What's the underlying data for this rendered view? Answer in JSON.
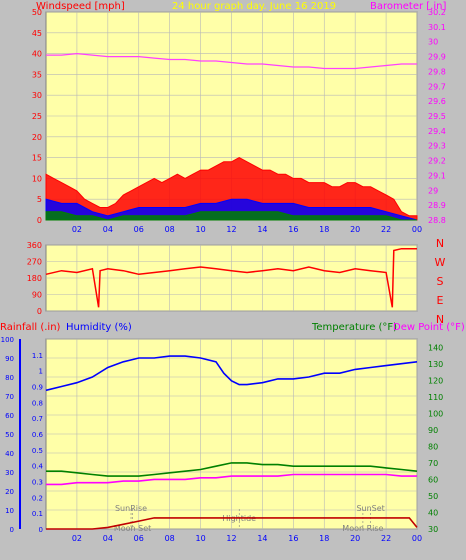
{
  "chart_data": [
    {
      "type": "line",
      "title": "24 hour graph day.  June 16 2019",
      "left_axis_label": "Windspeed [mph]",
      "right_axis_label": "Barometer [.in]",
      "x_ticks": [
        "02",
        "04",
        "06",
        "08",
        "10",
        "12",
        "14",
        "16",
        "18",
        "20",
        "22",
        "00"
      ],
      "xlim": [
        0,
        24
      ],
      "left_ylim": [
        0,
        50
      ],
      "left_ticks": [
        0,
        5,
        10,
        15,
        20,
        25,
        30,
        35,
        40,
        45,
        50
      ],
      "right_ylim": [
        28.8,
        30.2
      ],
      "right_ticks": [
        "28.8",
        "28.9",
        "29",
        "29.1",
        "29.2",
        "29.3",
        "29.4",
        "29.5",
        "29.6",
        "29.7",
        "29.8",
        "29.9",
        "30",
        "30.1",
        "30.2"
      ],
      "grid": true,
      "background": "#ffffa8",
      "series": [
        {
          "key": "barometer",
          "axis": "right",
          "color": "#ff40ff",
          "x": [
            0,
            1,
            2,
            3,
            4,
            5,
            6,
            7,
            8,
            9,
            10,
            11,
            12,
            13,
            14,
            15,
            16,
            17,
            18,
            19,
            20,
            21,
            22,
            23,
            24
          ],
          "values": [
            29.91,
            29.91,
            29.92,
            29.91,
            29.9,
            29.9,
            29.9,
            29.89,
            29.88,
            29.88,
            29.87,
            29.87,
            29.86,
            29.85,
            29.85,
            29.84,
            29.83,
            29.83,
            29.82,
            29.82,
            29.82,
            29.83,
            29.84,
            29.85,
            29.85
          ]
        },
        {
          "key": "gust",
          "axis": "left",
          "color": "#ff0000",
          "x": [
            0,
            0.5,
            1,
            1.5,
            2,
            2.5,
            3,
            3.5,
            4,
            4.5,
            5,
            5.5,
            6,
            6.5,
            7,
            7.5,
            8,
            8.5,
            9,
            9.5,
            10,
            10.5,
            11,
            11.5,
            12,
            12.5,
            13,
            13.5,
            14,
            14.5,
            15,
            15.5,
            16,
            16.5,
            17,
            17.5,
            18,
            18.5,
            19,
            19.5,
            20,
            20.5,
            21,
            21.5,
            22,
            22.5,
            23,
            23.5,
            24
          ],
          "values": [
            11,
            10,
            9,
            8,
            7,
            5,
            4,
            3,
            3,
            4,
            6,
            7,
            8,
            9,
            10,
            9,
            10,
            11,
            10,
            11,
            12,
            12,
            13,
            14,
            14,
            15,
            14,
            13,
            12,
            12,
            11,
            11,
            10,
            10,
            9,
            9,
            9,
            8,
            8,
            9,
            9,
            8,
            8,
            7,
            6,
            5,
            2,
            1,
            1
          ]
        },
        {
          "key": "wind_avg",
          "axis": "left",
          "color": "#0000ff",
          "x": [
            0,
            1,
            2,
            3,
            4,
            5,
            6,
            7,
            8,
            9,
            10,
            11,
            12,
            13,
            14,
            15,
            16,
            17,
            18,
            19,
            20,
            21,
            22,
            23,
            24
          ],
          "values": [
            5,
            4,
            4,
            2,
            1,
            2,
            3,
            3,
            3,
            3,
            4,
            4,
            5,
            5,
            4,
            4,
            4,
            3,
            3,
            3,
            3,
            3,
            2,
            1,
            0
          ]
        },
        {
          "key": "wind_min",
          "axis": "left",
          "color": "#008000",
          "x": [
            0,
            1,
            2,
            3,
            4,
            5,
            6,
            7,
            8,
            9,
            10,
            11,
            12,
            13,
            14,
            15,
            16,
            17,
            18,
            19,
            20,
            21,
            22,
            23,
            24
          ],
          "values": [
            2,
            2,
            1,
            1,
            0,
            1,
            1,
            1,
            1,
            1,
            2,
            2,
            2,
            2,
            2,
            2,
            1,
            1,
            1,
            1,
            1,
            1,
            1,
            0,
            0
          ]
        }
      ]
    },
    {
      "type": "line",
      "y_ticks": [
        "360",
        "270",
        "180",
        "90",
        "0"
      ],
      "ylim": [
        0,
        360
      ],
      "compass_labels": [
        "N",
        "W",
        "S",
        "E",
        "N"
      ],
      "x_ticks": [
        "02",
        "04",
        "06",
        "08",
        "10",
        "12",
        "14",
        "16",
        "18",
        "20",
        "22",
        "00"
      ],
      "xlim": [
        0,
        24
      ],
      "grid": true,
      "background": "#ffffa8",
      "series": [
        {
          "key": "wind_dir",
          "color": "#ff0000",
          "x": [
            0,
            1,
            2,
            3,
            3.4,
            3.5,
            4,
            5,
            6,
            7,
            8,
            9,
            10,
            11,
            12,
            13,
            14,
            15,
            16,
            17,
            18,
            19,
            20,
            21,
            22,
            22.4,
            22.5,
            23,
            24
          ],
          "values": [
            200,
            220,
            210,
            230,
            20,
            220,
            230,
            220,
            200,
            210,
            220,
            230,
            240,
            230,
            220,
            210,
            220,
            230,
            220,
            240,
            220,
            210,
            230,
            220,
            210,
            20,
            330,
            340,
            340
          ]
        }
      ]
    },
    {
      "type": "line",
      "left_axis_label_1": "Rainfall (.in)",
      "left_axis_label_2": "Humidity (%)",
      "right_axis_label_1": "Temperature (°F)",
      "right_axis_label_2": "Dew Point (°F)",
      "x_ticks": [
        "02",
        "04",
        "06",
        "08",
        "10",
        "12",
        "14",
        "16",
        "18",
        "20",
        "22",
        "00"
      ],
      "xlim": [
        0,
        24
      ],
      "humidity_ticks": [
        0,
        10,
        20,
        30,
        40,
        50,
        60,
        70,
        80,
        90,
        100
      ],
      "humidity_ylim": [
        0,
        100
      ],
      "rain_ticks": [
        "0",
        "0.1",
        "0.2",
        "0.3",
        "0.4",
        "0.5",
        "0.6",
        "0.7",
        "0.8",
        "0.9",
        "1",
        "1.1"
      ],
      "rain_ylim": [
        0,
        1.2
      ],
      "temp_ticks": [
        30,
        40,
        50,
        60,
        70,
        80,
        90,
        100,
        110,
        120,
        130,
        140
      ],
      "temp_ylim": [
        30,
        145
      ],
      "grid": true,
      "background": "#ffffa8",
      "annotations": [
        "SunRise",
        "Moon Set",
        "Hightide",
        "SunSet",
        "Moon Rise"
      ],
      "series": [
        {
          "key": "humidity",
          "axis": "humidity",
          "color": "#0000ff",
          "x": [
            0,
            1,
            2,
            3,
            4,
            5,
            6,
            7,
            8,
            9,
            10,
            11,
            11.5,
            12,
            12.5,
            13,
            14,
            15,
            16,
            17,
            18,
            19,
            20,
            21,
            22,
            23,
            24
          ],
          "values": [
            73,
            75,
            77,
            80,
            85,
            88,
            90,
            90,
            91,
            91,
            90,
            88,
            82,
            78,
            76,
            76,
            77,
            79,
            79,
            80,
            82,
            82,
            84,
            85,
            86,
            87,
            88
          ]
        },
        {
          "key": "temperature",
          "axis": "temp",
          "color": "#008000",
          "x": [
            0,
            1,
            2,
            3,
            4,
            5,
            6,
            7,
            8,
            9,
            10,
            11,
            12,
            13,
            14,
            15,
            16,
            17,
            18,
            19,
            20,
            21,
            22,
            23,
            24
          ],
          "values": [
            65,
            65,
            64,
            63,
            62,
            62,
            62,
            63,
            64,
            65,
            66,
            68,
            70,
            70,
            69,
            69,
            68,
            68,
            68,
            68,
            68,
            68,
            67,
            66,
            65
          ]
        },
        {
          "key": "dewpoint",
          "axis": "temp",
          "color": "#ff00ff",
          "x": [
            0,
            1,
            2,
            3,
            4,
            5,
            6,
            7,
            8,
            9,
            10,
            11,
            12,
            13,
            14,
            15,
            16,
            17,
            18,
            19,
            20,
            21,
            22,
            23,
            24
          ],
          "values": [
            57,
            57,
            58,
            58,
            58,
            59,
            59,
            60,
            60,
            60,
            61,
            61,
            62,
            62,
            62,
            62,
            63,
            63,
            63,
            63,
            63,
            63,
            63,
            62,
            62
          ]
        },
        {
          "key": "rainfall",
          "axis": "rain",
          "color": "#c00000",
          "x": [
            0,
            3,
            4,
            5,
            6,
            7,
            23,
            23.5,
            24
          ],
          "values": [
            0,
            0,
            0.01,
            0.03,
            0.05,
            0.07,
            0.07,
            0.07,
            0.01
          ]
        }
      ]
    }
  ]
}
